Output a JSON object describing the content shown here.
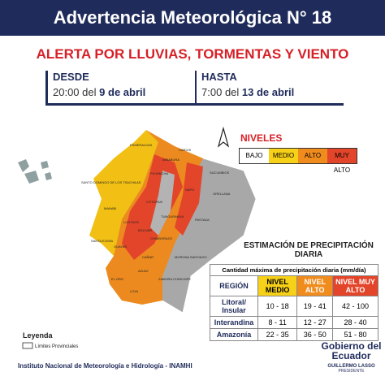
{
  "header": {
    "title": "Advertencia Meteorológica N° 18"
  },
  "alert": {
    "title": "ALERTA POR LLUVIAS, TORMENTAS Y VIENTO",
    "from": {
      "label": "DESDE",
      "time": "20:00",
      "word": "del",
      "date": "9 de abril"
    },
    "to": {
      "label": "HASTA",
      "time": "7:00",
      "word": "del",
      "date": "13 de abril"
    }
  },
  "levels": {
    "title": "NIVELES",
    "items": [
      "BAJO",
      "MEDIO",
      "ALTO",
      "MUY ALTO"
    ]
  },
  "map": {
    "provinces": [
      "ESMERALDAS",
      "CARCHI",
      "IMBABURA",
      "SANTO DOMINGO DE LOS TSACHILAS",
      "PICHINCHA",
      "SUCUMBIOS",
      "NAPO",
      "ORELLANA",
      "MANABI",
      "COTOPAXI",
      "TUNGURAHUA",
      "PASTAZA",
      "LOS RIOS",
      "BOLIVAR",
      "CHIMBORAZO",
      "SANTA ELENA",
      "GUAYAS",
      "CAÑAR",
      "MORONA SANTIAGO",
      "AZUAY",
      "EL ORO",
      "LOJA",
      "ZAMORA CHINCHIPE"
    ]
  },
  "table": {
    "title": "ESTIMACIÓN DE PRECIPITACIÓN DIARIA",
    "caption": "Cantidad máxima de precipitación diaria (mm/día)",
    "headers": [
      "REGIÓN",
      "NIVEL MEDIO",
      "NIVEL ALTO",
      "NIVEL MUY ALTO"
    ],
    "rows": [
      [
        "Litoral/ Insular",
        "10 - 18",
        "19 - 41",
        "42 - 100"
      ],
      [
        "Interandina",
        "8 - 11",
        "12 - 27",
        "28 - 40"
      ],
      [
        "Amazonía",
        "22 - 35",
        "36 - 50",
        "51 - 80"
      ]
    ]
  },
  "legend": {
    "title": "Leyenda",
    "item": "Límites Provinciales"
  },
  "footer": {
    "institute": "Instituto Nacional de Meteorología e Hidrología - INAMHI",
    "logo": "Gobierno del Ecuador",
    "president": "GUILLERMO LASSO",
    "role": "PRESIDENTE"
  }
}
